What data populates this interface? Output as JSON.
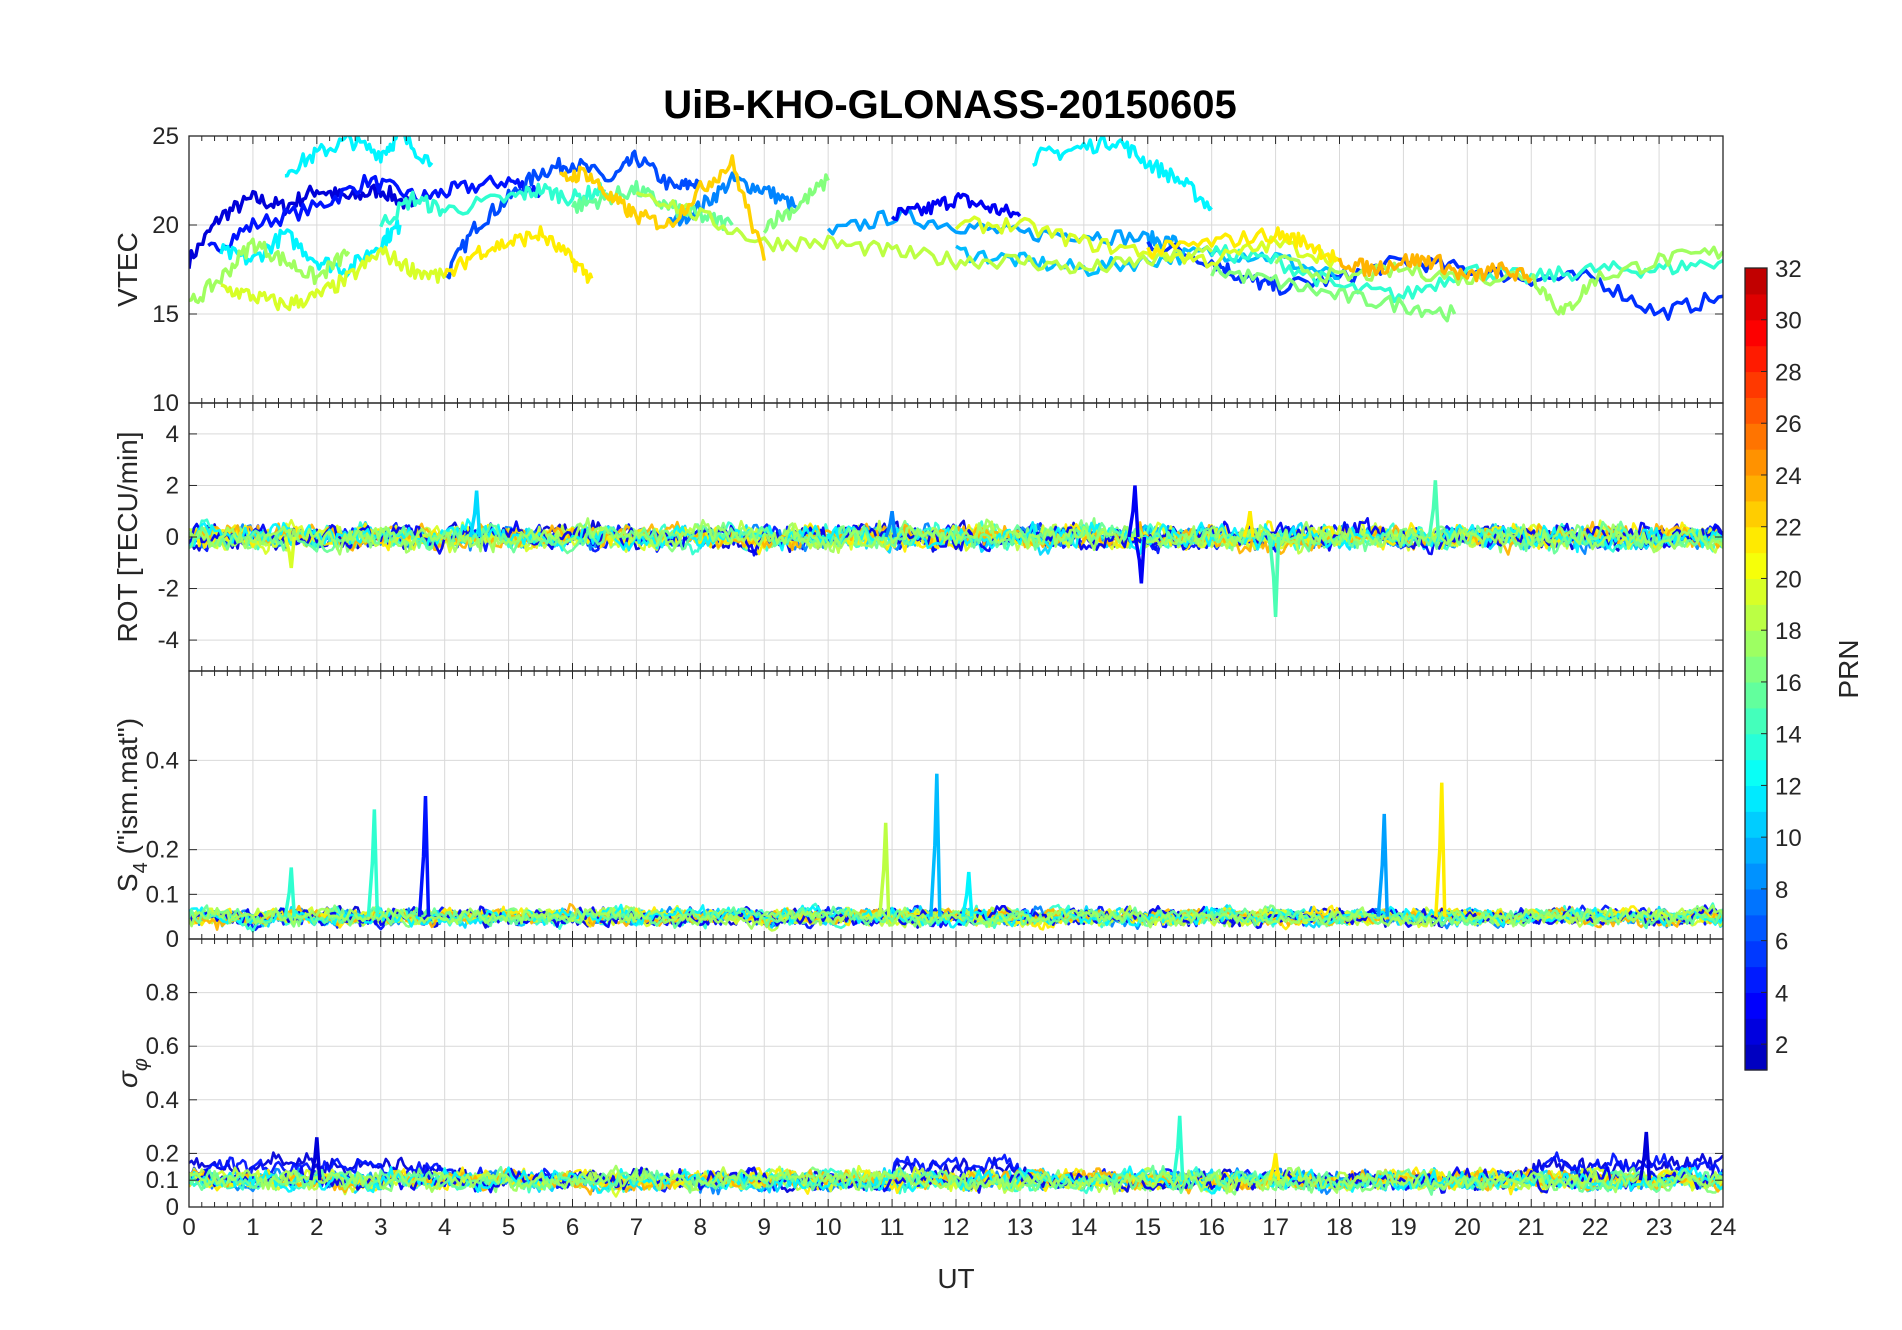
{
  "chart_data": {
    "type": "line",
    "title": "UiB-KHO-GLONASS-20150605",
    "xlabel": "UT",
    "x_ticks": [
      "0",
      "1",
      "2",
      "3",
      "4",
      "5",
      "6",
      "7",
      "8",
      "9",
      "10",
      "11",
      "12",
      "13",
      "14",
      "15",
      "16",
      "17",
      "18",
      "19",
      "20",
      "21",
      "22",
      "23",
      "24"
    ],
    "xlim": [
      0,
      24
    ],
    "grid": true,
    "panels": [
      {
        "id": "vtec",
        "ylabel": "VTEC",
        "ylim": [
          10,
          25
        ],
        "y_ticks": [
          10,
          15,
          20,
          25
        ],
        "y_tick_labels": [
          "10",
          "15",
          "20",
          "25"
        ],
        "series": [
          {
            "prn": 2,
            "x": [
              0,
              0.5,
              1,
              1.5,
              2,
              2.5,
              3,
              3.5
            ],
            "y": [
              18,
              20.5,
              21.5,
              21,
              22,
              21.5,
              22,
              21
            ]
          },
          {
            "prn": 4,
            "x": [
              0.3,
              1,
              2,
              2.8,
              3.6,
              4.2,
              5,
              5.5
            ],
            "y": [
              18.5,
              20,
              21,
              22.5,
              21.5,
              22,
              22.5,
              21.8
            ]
          },
          {
            "prn": 6,
            "x": [
              4,
              4.5,
              5,
              5.5,
              6,
              6.6,
              7,
              7.6,
              8
            ],
            "y": [
              17,
              20,
              21.5,
              23,
              23.5,
              22.5,
              23.8,
              22,
              22.5
            ]
          },
          {
            "prn": 8,
            "x": [
              7.5,
              8,
              8.5,
              9,
              9.5
            ],
            "y": [
              20,
              21,
              22.5,
              22,
              21
            ]
          },
          {
            "prn": 9,
            "x": [
              10,
              11,
              12,
              13,
              14,
              15,
              15.5
            ],
            "y": [
              19.5,
              20.5,
              20,
              19.5,
              19.5,
              19.2,
              19
            ]
          },
          {
            "prn": 3,
            "x": [
              11,
              11.5,
              12,
              12.5,
              13
            ],
            "y": [
              20.5,
              20.8,
              21.5,
              21,
              20.5
            ]
          },
          {
            "prn": 5,
            "x": [
              15,
              16,
              16.5,
              17,
              18,
              19,
              20,
              21,
              22,
              23,
              24
            ],
            "y": [
              19,
              18,
              17,
              16.5,
              17,
              18,
              17.5,
              17,
              17,
              15,
              16
            ]
          },
          {
            "prn": 10,
            "x": [
              12,
              13,
              14,
              15,
              16,
              17,
              18
            ],
            "y": [
              18.5,
              18,
              17.5,
              18,
              18.5,
              18.2,
              17
            ]
          },
          {
            "prn": 12,
            "x": [
              0.5,
              1,
              1.5,
              2,
              2.5,
              3,
              3.3
            ],
            "y": [
              18.5,
              18,
              19.5,
              18,
              17.5,
              19,
              20
            ]
          },
          {
            "prn": 12,
            "x": [
              1.5,
              2,
              2.5,
              3,
              3.3,
              3.8
            ],
            "y": [
              23,
              24,
              24.8,
              24,
              25,
              23.5
            ]
          },
          {
            "prn": 12,
            "x": [
              13.2,
              13.8,
              14.5,
              15,
              15.5,
              16
            ],
            "y": [
              23.8,
              24.2,
              24.8,
              23.5,
              22.5,
              21
            ]
          },
          {
            "prn": 14,
            "x": [
              3,
              3.5,
              4,
              5,
              5.5,
              6,
              6.5
            ],
            "y": [
              20,
              21.5,
              20.8,
              21.5,
              22,
              21.5,
              22
            ]
          },
          {
            "prn": 14,
            "x": [
              16,
              17,
              18,
              19,
              20,
              21,
              22,
              23,
              24
            ],
            "y": [
              18.5,
              18,
              16.5,
              16,
              17.5,
              17,
              17.5,
              17.5,
              18
            ]
          },
          {
            "prn": 16,
            "x": [
              6,
              6.5,
              7,
              7.5,
              8,
              8.5
            ],
            "y": [
              21,
              21.5,
              22,
              21,
              20.5,
              20
            ]
          },
          {
            "prn": 17,
            "x": [
              9,
              9.5,
              10
            ],
            "y": [
              20,
              21,
              22.5
            ]
          },
          {
            "prn": 17,
            "x": [
              16,
              17,
              18,
              19,
              19.8
            ],
            "y": [
              17.5,
              16.8,
              16,
              15.5,
              15
            ]
          },
          {
            "prn": 18,
            "x": [
              0,
              0.5,
              1,
              1.5,
              2,
              2.5
            ],
            "y": [
              15.5,
              17,
              19,
              18,
              17,
              18.5
            ]
          },
          {
            "prn": 18,
            "x": [
              17,
              18,
              19,
              20,
              21,
              21.5,
              22,
              23,
              24
            ],
            "y": [
              18,
              17,
              17.5,
              17,
              17.2,
              15,
              17,
              18,
              18.5
            ]
          },
          {
            "prn": 19,
            "x": [
              7,
              8,
              9,
              10,
              11,
              12,
              13,
              14,
              15,
              16
            ],
            "y": [
              22,
              20.5,
              19,
              19,
              18.5,
              18,
              18,
              17.5,
              18,
              18.5
            ]
          },
          {
            "prn": 20,
            "x": [
              0.5,
              1,
              1.5,
              2,
              2.5,
              3,
              3.5,
              4
            ],
            "y": [
              16.5,
              16,
              15.5,
              16,
              17,
              18.5,
              17.5,
              17
            ]
          },
          {
            "prn": 20,
            "x": [
              12,
              13,
              14,
              15,
              16,
              17,
              18
            ],
            "y": [
              20,
              20,
              19,
              18.5,
              18,
              19,
              18
            ]
          },
          {
            "prn": 22,
            "x": [
              4,
              4.5,
              5,
              5.5,
              6,
              6.3
            ],
            "y": [
              17,
              18.5,
              19,
              19.5,
              18,
              17
            ]
          },
          {
            "prn": 22,
            "x": [
              15,
              16,
              17,
              17.5,
              18
            ],
            "y": [
              18.5,
              19,
              19.5,
              19,
              18
            ]
          },
          {
            "prn": 23,
            "x": [
              5.8,
              6.2,
              6.6,
              7,
              7.5,
              8,
              8.5,
              9
            ],
            "y": [
              22.5,
              23,
              21.5,
              20.5,
              20,
              22,
              23.5,
              18
            ]
          },
          {
            "prn": 24,
            "x": [
              18,
              18.5,
              19,
              19.5,
              20,
              20.5,
              21
            ],
            "y": [
              18,
              17.5,
              18,
              18,
              17,
              17.5,
              17
            ]
          }
        ]
      },
      {
        "id": "rot",
        "ylabel": "ROT [TECU/min]",
        "ylim": [
          -5.2,
          5.2
        ],
        "y_ticks": [
          -4,
          -2,
          0,
          2,
          4
        ],
        "y_tick_labels": [
          "-4",
          "-2",
          "0",
          "2",
          "4"
        ],
        "base": 0,
        "band": 0.5,
        "spikes": [
          {
            "prn": 11,
            "x": 4.5,
            "y": 1.8
          },
          {
            "prn": 3,
            "x": 14.8,
            "y": 2.0
          },
          {
            "prn": 3,
            "x": 14.9,
            "y": -1.8
          },
          {
            "prn": 15,
            "x": 17,
            "y": -3.1
          },
          {
            "prn": 15,
            "x": 19.5,
            "y": 2.2
          },
          {
            "prn": 20,
            "x": 1.6,
            "y": -1.2
          },
          {
            "prn": 22,
            "x": 16.6,
            "y": 1.0
          },
          {
            "prn": 8,
            "x": 11,
            "y": 1.0
          }
        ]
      },
      {
        "id": "s4",
        "ylabel": "S4 (\"ism.mat\")",
        "ylabel_main": "S",
        "ylabel_sub": "4",
        "ylabel_rest": " (\"ism.mat\")",
        "ylim": [
          0,
          0.6
        ],
        "y_ticks": [
          0,
          0.1,
          0.2,
          0.4
        ],
        "y_tick_labels": [
          "0",
          "0.1",
          "0.2",
          "0.4"
        ],
        "base": 0.05,
        "band": 0.02,
        "spikes": [
          {
            "prn": 14,
            "x": 2.9,
            "y": 0.29
          },
          {
            "prn": 4,
            "x": 3.7,
            "y": 0.32
          },
          {
            "prn": 19,
            "x": 10.9,
            "y": 0.26
          },
          {
            "prn": 10,
            "x": 11.7,
            "y": 0.37
          },
          {
            "prn": 9,
            "x": 18.7,
            "y": 0.28
          },
          {
            "prn": 22,
            "x": 19.6,
            "y": 0.35
          },
          {
            "prn": 14,
            "x": 1.6,
            "y": 0.16
          },
          {
            "prn": 12,
            "x": 12.2,
            "y": 0.15
          }
        ]
      },
      {
        "id": "sigma_phi",
        "ylabel": "σφ",
        "ylabel_main": "σ",
        "ylabel_sub": "φ",
        "ylim": [
          0,
          1
        ],
        "y_ticks": [
          0,
          0.1,
          0.2,
          0.4,
          0.6,
          0.8
        ],
        "y_tick_labels": [
          "0",
          "0.1",
          "0.2",
          "0.4",
          "0.6",
          "0.8"
        ],
        "base": 0.1,
        "band": 0.04,
        "spikes": [
          {
            "prn": 14,
            "x": 15.5,
            "y": 0.34
          },
          {
            "prn": 22,
            "x": 17,
            "y": 0.2
          },
          {
            "prn": 2,
            "x": 2,
            "y": 0.26
          },
          {
            "prn": 2,
            "x": 22.8,
            "y": 0.28
          }
        ]
      }
    ],
    "colorbar": {
      "label": "PRN",
      "lim": [
        1,
        32
      ],
      "ticks": [
        2,
        4,
        6,
        8,
        10,
        12,
        14,
        16,
        18,
        20,
        22,
        24,
        26,
        28,
        30,
        32
      ],
      "tick_labels": [
        "2",
        "4",
        "6",
        "8",
        "10",
        "12",
        "14",
        "16",
        "18",
        "20",
        "22",
        "24",
        "26",
        "28",
        "30",
        "32"
      ],
      "colormap": "jet"
    }
  }
}
